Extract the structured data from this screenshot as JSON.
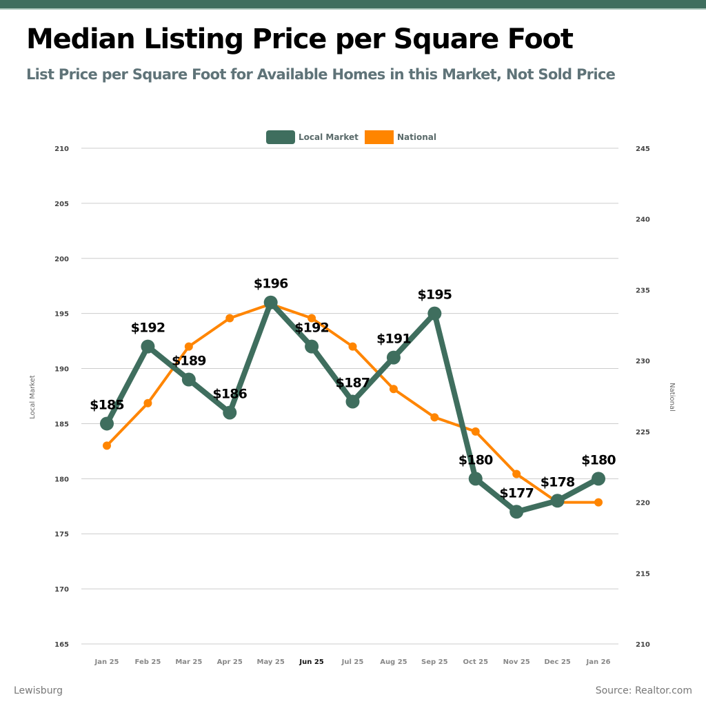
{
  "header": {
    "title": "Median Listing Price per Square Foot",
    "subtitle": "List Price per Square Foot for Available Homes in this Market, Not Sold Price"
  },
  "footer": {
    "location": "Lewisburg",
    "source": "Source: Realtor.com"
  },
  "colors": {
    "top_bar": "#3f6e5e",
    "local": "#3f6e5e",
    "national": "#ff8500",
    "grid": "#cccccc"
  },
  "chart_data": {
    "type": "line",
    "title": "Median Listing Price per Square Foot",
    "categories": [
      "Jan 25",
      "Feb 25",
      "Mar 25",
      "Apr 25",
      "May 25",
      "Jun 25",
      "Jul 25",
      "Aug 25",
      "Sep 25",
      "Oct 25",
      "Nov 25",
      "Dec 25",
      "Jan 26"
    ],
    "highlighted_category": "Jun 25",
    "series": [
      {
        "name": "Local Market",
        "axis": "left",
        "values": [
          185,
          192,
          189,
          186,
          196,
          192,
          187,
          191,
          195,
          180,
          177,
          178,
          180
        ],
        "labels": [
          "$185",
          "$192",
          "$189",
          "$186",
          "$196",
          "$192",
          "$187",
          "$191",
          "$195",
          "$180",
          "$177",
          "$178",
          "$180"
        ]
      },
      {
        "name": "National",
        "axis": "right",
        "values": [
          224,
          227,
          231,
          233,
          234,
          233,
          231,
          228,
          226,
          225,
          222,
          220,
          220
        ]
      }
    ],
    "ylabel_left": "Local Market",
    "ylabel_right": "National",
    "ylim_left": [
      165,
      210
    ],
    "yticks_left": [
      165,
      170,
      175,
      180,
      185,
      190,
      195,
      200,
      205,
      210
    ],
    "ylim_right": [
      210,
      245
    ],
    "yticks_right": [
      210,
      215,
      220,
      225,
      230,
      235,
      240,
      245
    ],
    "grid": true,
    "legend": "top-center"
  }
}
